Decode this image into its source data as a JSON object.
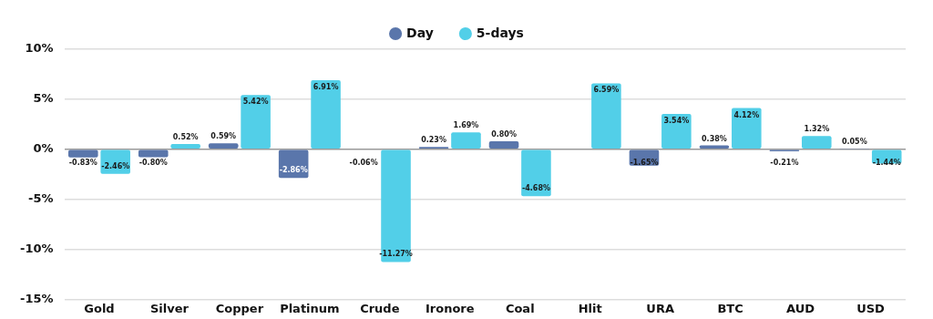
{
  "chart_data": {
    "type": "bar",
    "categories": [
      "Gold",
      "Silver",
      "Copper",
      "Platinum",
      "Crude",
      "Ironore",
      "Coal",
      "Hlit",
      "URA",
      "BTC",
      "AUD",
      "USD"
    ],
    "series": [
      {
        "name": "Day",
        "color": "#5a76ab",
        "values": [
          -0.83,
          -0.8,
          0.59,
          -2.86,
          -0.06,
          0.23,
          0.8,
          null,
          -1.65,
          0.38,
          -0.21,
          0.05
        ],
        "value_labels": [
          "-0.83%",
          "-0.80%",
          "0.59%",
          "-2.86%",
          "-0.06%",
          "0.23%",
          "0.80%",
          null,
          "-1.65%",
          "0.38%",
          "-0.21%",
          "0.05%"
        ]
      },
      {
        "name": "5-days",
        "color": "#52cfe8",
        "values": [
          -2.46,
          0.52,
          5.42,
          6.91,
          -11.27,
          1.69,
          -4.68,
          6.59,
          3.54,
          4.12,
          1.32,
          -1.44
        ],
        "value_labels": [
          "-2.46%",
          "0.52%",
          "5.42%",
          "6.91%",
          "-11.27%",
          "1.69%",
          "-4.68%",
          "6.59%",
          "3.54%",
          "4.12%",
          "1.32%",
          "-1.44%"
        ]
      }
    ],
    "ylim": [
      -15,
      10
    ],
    "yticks": [
      {
        "value": -15,
        "label": "-15%"
      },
      {
        "value": -10,
        "label": "-10%"
      },
      {
        "value": -5,
        "label": "-5%"
      },
      {
        "value": 0,
        "label": "0%"
      },
      {
        "value": 5,
        "label": "5%"
      },
      {
        "value": 10,
        "label": "10%"
      }
    ],
    "grid": "y",
    "legend": "top"
  }
}
